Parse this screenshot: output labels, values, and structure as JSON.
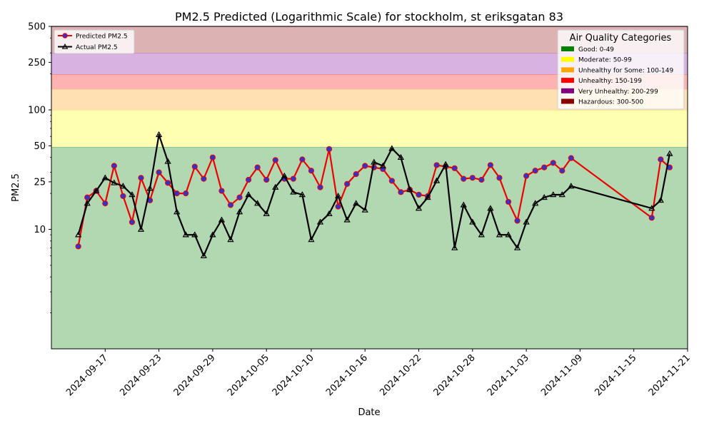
{
  "chart_data": {
    "type": "line",
    "title": "PM2.5 Predicted (Logarithmic Scale) for stockholm, st eriksgatan 83",
    "xlabel": "Date",
    "ylabel": "PM2.5",
    "y_scale": "log",
    "ylim": [
      1,
      500
    ],
    "xlim": [
      "2024-09-11",
      "2024-11-21"
    ],
    "y_ticks": [
      10,
      25,
      50,
      100,
      250,
      500
    ],
    "x_ticks": [
      "2024-09-17",
      "2024-09-23",
      "2024-09-29",
      "2024-10-05",
      "2024-10-10",
      "2024-10-16",
      "2024-10-22",
      "2024-10-28",
      "2024-11-03",
      "2024-11-09",
      "2024-11-15",
      "2024-11-21"
    ],
    "grid": false,
    "bands": [
      {
        "label": "Good: 0-49",
        "from": 0,
        "to": 49,
        "color": "#008000",
        "fill": "#b2d8b2"
      },
      {
        "label": "Moderate: 50-99",
        "from": 49,
        "to": 99,
        "color": "#ffff00",
        "fill": "#ffffb2"
      },
      {
        "label": "Unhealthy for Some: 100-149",
        "from": 99,
        "to": 149,
        "color": "#ffa500",
        "fill": "#ffe0b2"
      },
      {
        "label": "Unhealthy: 150-199",
        "from": 149,
        "to": 199,
        "color": "#ff0000",
        "fill": "#ffb2b2"
      },
      {
        "label": "Very Unhealthy: 200-299",
        "from": 199,
        "to": 299,
        "color": "#800080",
        "fill": "#d8b2e0"
      },
      {
        "label": "Hazardous: 300-500",
        "from": 299,
        "to": 500,
        "color": "#8b0000",
        "fill": "#dcb2b2"
      }
    ],
    "categories_legend": {
      "title": "Air Quality Categories",
      "position": "top-right"
    },
    "series_legend": {
      "position": "top-left"
    },
    "series": [
      {
        "name": "Predicted PM2.5",
        "color": "#ee0000",
        "marker": "circle",
        "marker_color": "#3333cc",
        "x": [
          "2024-09-14",
          "2024-09-15",
          "2024-09-16",
          "2024-09-17",
          "2024-09-18",
          "2024-09-19",
          "2024-09-20",
          "2024-09-21",
          "2024-09-22",
          "2024-09-23",
          "2024-09-24",
          "2024-09-25",
          "2024-09-26",
          "2024-09-27",
          "2024-09-28",
          "2024-09-29",
          "2024-09-30",
          "2024-10-01",
          "2024-10-02",
          "2024-10-03",
          "2024-10-04",
          "2024-10-05",
          "2024-10-06",
          "2024-10-07",
          "2024-10-08",
          "2024-10-09",
          "2024-10-10",
          "2024-10-11",
          "2024-10-12",
          "2024-10-13",
          "2024-10-14",
          "2024-10-15",
          "2024-10-16",
          "2024-10-17",
          "2024-10-18",
          "2024-10-19",
          "2024-10-20",
          "2024-10-21",
          "2024-10-22",
          "2024-10-23",
          "2024-10-24",
          "2024-10-25",
          "2024-10-26",
          "2024-10-27",
          "2024-10-28",
          "2024-10-29",
          "2024-10-30",
          "2024-10-31",
          "2024-11-01",
          "2024-11-02",
          "2024-11-03",
          "2024-11-04",
          "2024-11-05",
          "2024-11-06",
          "2024-11-07",
          "2024-11-08",
          "2024-11-17",
          "2024-11-18",
          "2024-11-19"
        ],
        "values": [
          7.2,
          18.5,
          21,
          16.5,
          34,
          19,
          11.5,
          27,
          17.5,
          30,
          24.5,
          20,
          20,
          33.5,
          26.5,
          40,
          21,
          16,
          18.5,
          26,
          33,
          26,
          38,
          26.5,
          26.5,
          38.5,
          31,
          22.5,
          47,
          15.5,
          24,
          29,
          34,
          33,
          32,
          25.5,
          20.5,
          21.5,
          19.5,
          19,
          34.5,
          33.5,
          32.5,
          26.5,
          27,
          26,
          34.5,
          27,
          17,
          11.8,
          28,
          31,
          33,
          36,
          31,
          39.5,
          12.5,
          38.5,
          33
        ]
      },
      {
        "name": "Actual PM2.5",
        "color": "#000000",
        "marker": "triangle",
        "marker_color": "#000000",
        "x": [
          "2024-09-14",
          "2024-09-15",
          "2024-09-16",
          "2024-09-17",
          "2024-09-18",
          "2024-09-19",
          "2024-09-20",
          "2024-09-21",
          "2024-09-22",
          "2024-09-23",
          "2024-09-24",
          "2024-09-25",
          "2024-09-26",
          "2024-09-27",
          "2024-09-28",
          "2024-09-29",
          "2024-09-30",
          "2024-10-01",
          "2024-10-02",
          "2024-10-03",
          "2024-10-04",
          "2024-10-05",
          "2024-10-06",
          "2024-10-07",
          "2024-10-08",
          "2024-10-09",
          "2024-10-10",
          "2024-10-11",
          "2024-10-12",
          "2024-10-13",
          "2024-10-14",
          "2024-10-15",
          "2024-10-16",
          "2024-10-17",
          "2024-10-18",
          "2024-10-19",
          "2024-10-20",
          "2024-10-21",
          "2024-10-22",
          "2024-10-23",
          "2024-10-24",
          "2024-10-25",
          "2024-10-26",
          "2024-10-27",
          "2024-10-28",
          "2024-10-29",
          "2024-10-30",
          "2024-10-31",
          "2024-11-01",
          "2024-11-02",
          "2024-11-03",
          "2024-11-04",
          "2024-11-05",
          "2024-11-06",
          "2024-11-07",
          "2024-11-08",
          "2024-11-17",
          "2024-11-18",
          "2024-11-19"
        ],
        "values": [
          9,
          16.5,
          21,
          27,
          24.5,
          23,
          19.5,
          10,
          22,
          62,
          37,
          14,
          9,
          9,
          6,
          9,
          12,
          8.2,
          14,
          19.5,
          16.5,
          13.5,
          22.5,
          28,
          20.5,
          19.5,
          8.2,
          11.5,
          13.5,
          19,
          12,
          16.5,
          14.5,
          36.5,
          34,
          47.5,
          40,
          21.5,
          15,
          18.5,
          25.5,
          35,
          7,
          16,
          11.5,
          9,
          15,
          9,
          9,
          7,
          11.5,
          16.5,
          18.5,
          19.5,
          19.5,
          23,
          15,
          17.5,
          43
        ]
      }
    ]
  }
}
